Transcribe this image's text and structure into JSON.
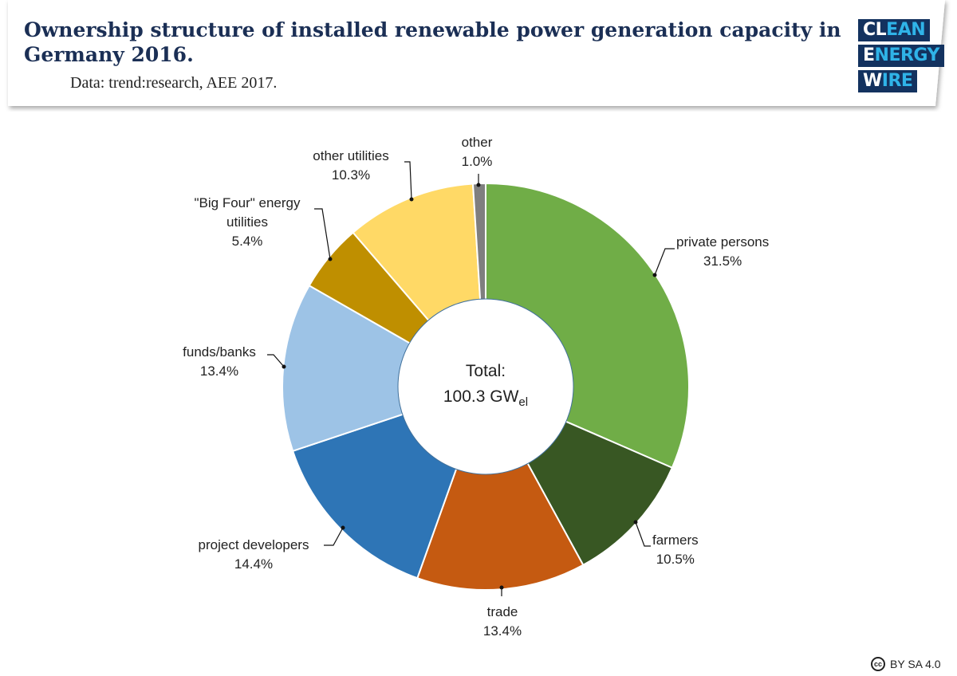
{
  "header": {
    "title": "Ownership structure of installed renewable power generation capacity in Germany 2016.",
    "subtitle": "Data: trend:research, AEE 2017."
  },
  "logo": {
    "line1": [
      "CL",
      "EAN"
    ],
    "line2": [
      "E",
      "NERGY"
    ],
    "line3": [
      "W",
      "IRE"
    ]
  },
  "license": {
    "icon": "cc-icon",
    "text": "BY SA 4.0"
  },
  "chart_data": {
    "type": "pie",
    "variant": "donut",
    "title": "Ownership structure of installed renewable power generation capacity in Germany 2016.",
    "center_label": {
      "line1": "Total:",
      "value": "100.3 GW",
      "subscript": "el"
    },
    "unit": "%",
    "slices": [
      {
        "name": "private persons",
        "value": 31.5,
        "label": "31.5%",
        "color": "#70ad47"
      },
      {
        "name": "farmers",
        "value": 10.5,
        "label": "10.5%",
        "color": "#385723"
      },
      {
        "name": "trade",
        "value": 13.4,
        "label": "13.4%",
        "color": "#c55a11"
      },
      {
        "name": "project developers",
        "value": 14.4,
        "label": "14.4%",
        "color": "#2e75b6"
      },
      {
        "name": "funds/banks",
        "value": 13.4,
        "label": "13.4%",
        "color": "#9dc3e6"
      },
      {
        "name": "\"Big Four\" energy utilities",
        "value": 5.4,
        "label": "5.4%",
        "color": "#bf8f00"
      },
      {
        "name": "other utilities",
        "value": 10.3,
        "label": "10.3%",
        "color": "#ffd966"
      },
      {
        "name": "other",
        "value": 1.0,
        "label": "1.0%",
        "color": "#7f7f7f"
      }
    ],
    "start": "top",
    "direction": "clockwise",
    "legend": "none"
  }
}
